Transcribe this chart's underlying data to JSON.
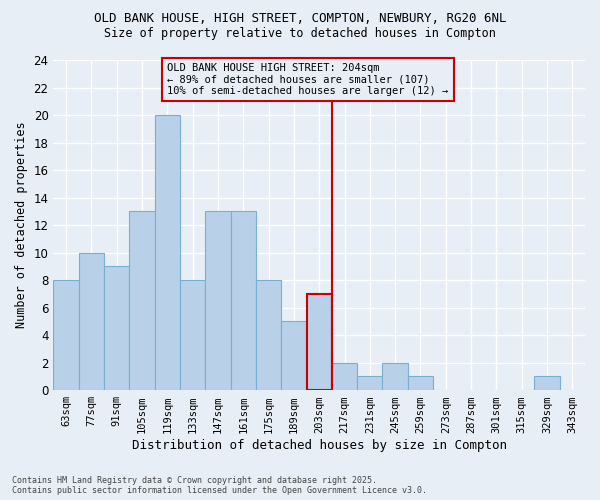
{
  "title1": "OLD BANK HOUSE, HIGH STREET, COMPTON, NEWBURY, RG20 6NL",
  "title2": "Size of property relative to detached houses in Compton",
  "xlabel": "Distribution of detached houses by size in Compton",
  "ylabel": "Number of detached properties",
  "categories": [
    "63sqm",
    "77sqm",
    "91sqm",
    "105sqm",
    "119sqm",
    "133sqm",
    "147sqm",
    "161sqm",
    "175sqm",
    "189sqm",
    "203sqm",
    "217sqm",
    "231sqm",
    "245sqm",
    "259sqm",
    "273sqm",
    "287sqm",
    "301sqm",
    "315sqm",
    "329sqm",
    "343sqm"
  ],
  "values": [
    8,
    10,
    9,
    13,
    20,
    8,
    13,
    13,
    8,
    5,
    7,
    2,
    1,
    2,
    1,
    0,
    0,
    0,
    0,
    1,
    0
  ],
  "highlight_index": 10,
  "bar_color": "#b8d0e8",
  "bar_edge_color": "#7aafd4",
  "highlight_bar_edge_color": "#cc0000",
  "vline_color": "#cc0000",
  "annotation_text": "OLD BANK HOUSE HIGH STREET: 204sqm\n← 89% of detached houses are smaller (107)\n10% of semi-detached houses are larger (12) →",
  "annotation_box_edge_color": "#cc0000",
  "ylim": [
    0,
    24
  ],
  "yticks": [
    0,
    2,
    4,
    6,
    8,
    10,
    12,
    14,
    16,
    18,
    20,
    22,
    24
  ],
  "background_color": "#e8eef5",
  "grid_color": "#ffffff",
  "footer_line1": "Contains HM Land Registry data © Crown copyright and database right 2025.",
  "footer_line2": "Contains public sector information licensed under the Open Government Licence v3.0."
}
